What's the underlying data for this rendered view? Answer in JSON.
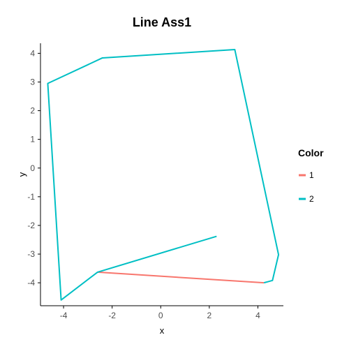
{
  "chart_data": {
    "type": "line",
    "title": "Line Ass1",
    "xlabel": "x",
    "ylabel": "y",
    "xlim": [
      -4.95,
      5.05
    ],
    "ylim": [
      -4.8,
      4.35
    ],
    "x_ticks": [
      -4,
      -2,
      0,
      2,
      4
    ],
    "y_ticks": [
      -4,
      -3,
      -2,
      -1,
      0,
      1,
      2,
      3,
      4
    ],
    "grid": false,
    "legend": {
      "title": "Color",
      "placement": "right",
      "entries": [
        "1",
        "2"
      ]
    },
    "series": [
      {
        "name": "1",
        "color": "#f8766d",
        "points": [
          [
            -2.6,
            -3.63
          ],
          [
            4.25,
            -4.0
          ]
        ]
      },
      {
        "name": "2",
        "color": "#00bfc4",
        "points": [
          [
            4.25,
            -4.0
          ],
          [
            4.6,
            -3.92
          ],
          [
            4.85,
            -3.02
          ],
          [
            3.05,
            4.13
          ],
          [
            -2.4,
            3.84
          ],
          [
            -4.65,
            2.95
          ],
          [
            -4.1,
            -4.6
          ],
          [
            -2.6,
            -3.63
          ],
          [
            2.3,
            -2.38
          ]
        ]
      }
    ]
  }
}
